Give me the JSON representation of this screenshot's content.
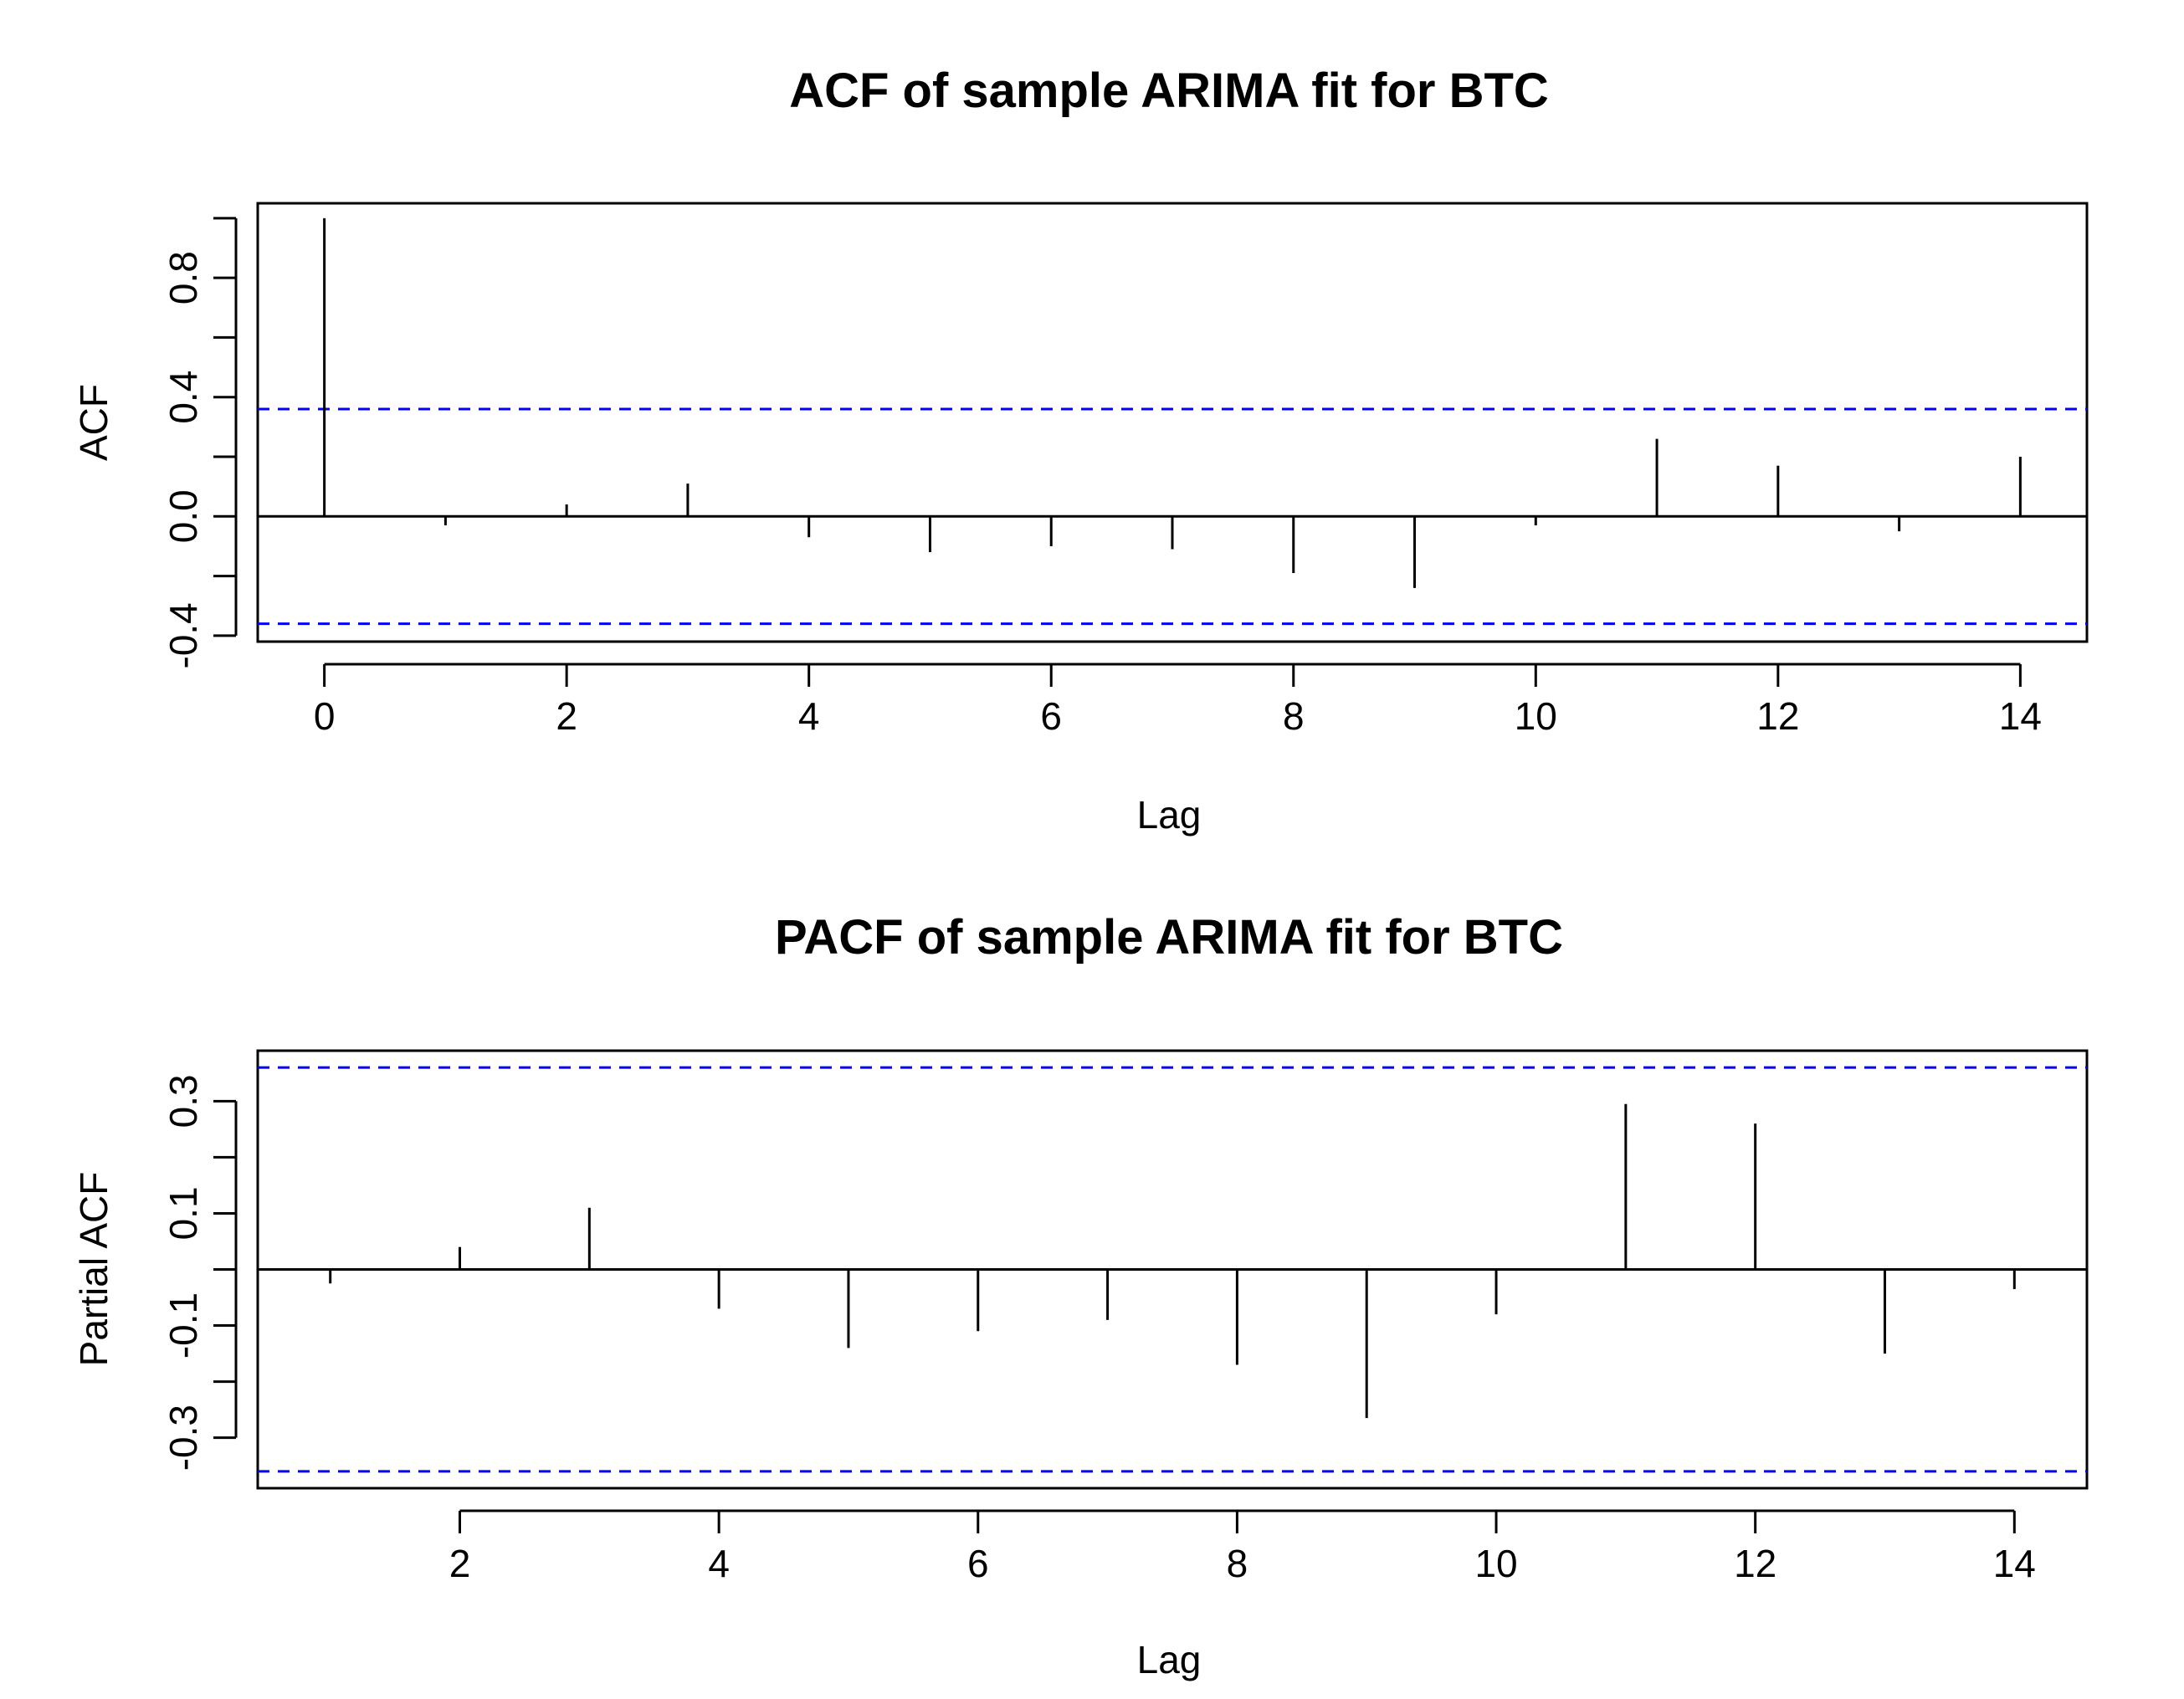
{
  "chart_data": [
    {
      "type": "bar",
      "title": "ACF of sample ARIMA fit for BTC",
      "xlabel": "Lag",
      "ylabel": "ACF",
      "xlim": [
        -0.55,
        14.55
      ],
      "ylim": [
        -0.42,
        1.05
      ],
      "x_ticks": [
        0,
        2,
        4,
        6,
        8,
        10,
        12,
        14
      ],
      "y_ticks": [
        -0.4,
        -0.2,
        0.0,
        0.2,
        0.4,
        0.6,
        0.8,
        1.0
      ],
      "y_tick_labels": [
        "-0.4",
        "",
        "0.0",
        "",
        "0.4",
        "",
        "0.8",
        ""
      ],
      "confidence_bounds": [
        0.36,
        -0.36
      ],
      "lags": [
        0,
        1,
        2,
        3,
        4,
        5,
        6,
        7,
        8,
        9,
        10,
        11,
        12,
        13,
        14
      ],
      "values": [
        1.0,
        -0.03,
        0.04,
        0.11,
        -0.07,
        -0.12,
        -0.1,
        -0.11,
        -0.19,
        -0.24,
        -0.03,
        0.26,
        0.17,
        -0.05,
        0.2
      ]
    },
    {
      "type": "bar",
      "title": "PACF of sample ARIMA fit for BTC",
      "xlabel": "Lag",
      "ylabel": "Partial ACF",
      "xlim": [
        0.44,
        14.56
      ],
      "ylim": [
        -0.39,
        0.39
      ],
      "x_ticks": [
        2,
        4,
        6,
        8,
        10,
        12,
        14
      ],
      "y_ticks": [
        -0.3,
        -0.2,
        -0.1,
        0.0,
        0.1,
        0.2,
        0.3
      ],
      "y_tick_labels": [
        "-0.3",
        "",
        "-0.1",
        "",
        "0.1",
        "",
        "0.3"
      ],
      "confidence_bounds": [
        0.36,
        -0.36
      ],
      "lags": [
        1,
        2,
        3,
        4,
        5,
        6,
        7,
        8,
        9,
        10,
        11,
        12,
        13,
        14
      ],
      "values": [
        -0.025,
        0.04,
        0.11,
        -0.07,
        -0.14,
        -0.11,
        -0.09,
        -0.17,
        -0.265,
        -0.08,
        0.295,
        0.26,
        -0.15,
        -0.035
      ]
    }
  ]
}
